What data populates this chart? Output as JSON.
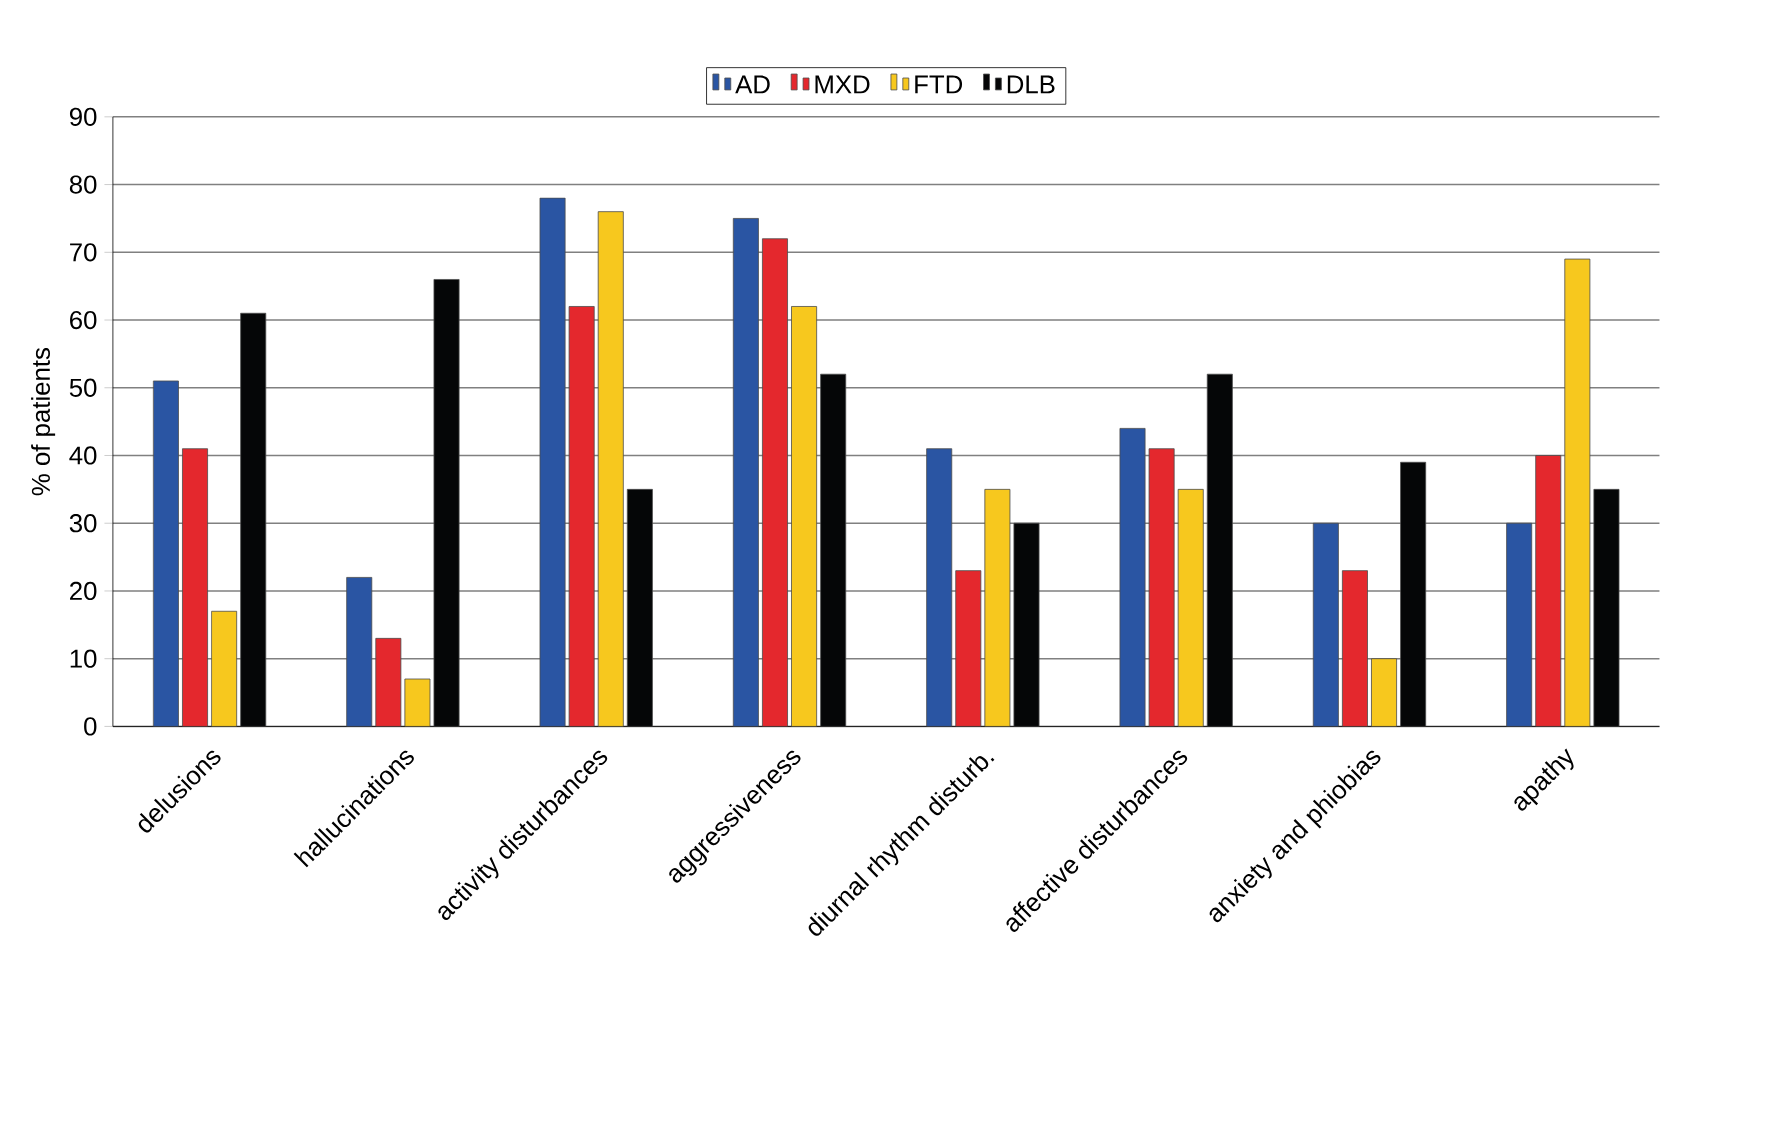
{
  "chart_data": {
    "type": "bar",
    "ylabel": "% of patients",
    "categories": [
      "delusions",
      "hallucinations",
      "activity disturbances",
      "aggressiveness",
      "diurnal rhythm disturb.",
      "affective disturbances",
      "anxiety and phiobias",
      "apathy"
    ],
    "series": [
      {
        "name": "AD",
        "color": "#2a55a3",
        "values": [
          51,
          22,
          78,
          75,
          41,
          44,
          30,
          30
        ]
      },
      {
        "name": "MXD",
        "color": "#e4282d",
        "values": [
          41,
          13,
          62,
          72,
          23,
          41,
          23,
          40
        ]
      },
      {
        "name": "FTD",
        "color": "#f7c81e",
        "values": [
          17,
          7,
          76,
          62,
          35,
          35,
          10,
          69
        ]
      },
      {
        "name": "DLB",
        "color": "#050607",
        "values": [
          61,
          66,
          35,
          52,
          30,
          52,
          39,
          35
        ]
      }
    ],
    "ylim": [
      0,
      90
    ],
    "yticks": [
      0,
      10,
      20,
      30,
      40,
      50,
      60,
      70,
      80,
      90
    ],
    "grid": "y",
    "legend": "top"
  }
}
